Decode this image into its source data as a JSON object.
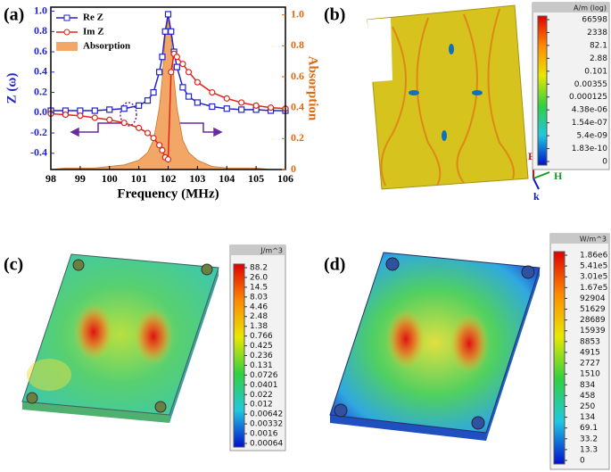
{
  "chart_data": {
    "type": "line",
    "xlabel": "Frequency (MHz)",
    "ylabel": "Z (ω)",
    "y2label": "Absorption",
    "x": [
      98,
      98.5,
      99,
      99.5,
      100,
      100.5,
      101,
      101.3,
      101.5,
      101.7,
      101.8,
      101.9,
      102,
      102.1,
      102.2,
      102.3,
      102.5,
      102.7,
      103,
      103.5,
      104,
      104.5,
      105,
      105.5,
      106
    ],
    "series": [
      {
        "name": "Re Z",
        "type": "line",
        "marker": "square",
        "color": "#2323c8",
        "values": [
          0.02,
          0.02,
          0.02,
          0.02,
          0.03,
          0.04,
          0.07,
          0.12,
          0.2,
          0.4,
          0.55,
          0.8,
          0.97,
          0.8,
          0.6,
          0.45,
          0.25,
          0.16,
          0.1,
          0.06,
          0.04,
          0.03,
          0.03,
          0.02,
          0.02
        ]
      },
      {
        "name": "Im Z",
        "type": "line",
        "marker": "circle",
        "color": "#e0241c",
        "values": [
          -0.01,
          -0.02,
          -0.03,
          -0.05,
          -0.07,
          -0.1,
          -0.15,
          -0.2,
          -0.25,
          -0.32,
          -0.37,
          -0.44,
          -0.46,
          0.4,
          0.58,
          0.55,
          0.48,
          0.4,
          0.3,
          0.2,
          0.14,
          0.1,
          0.07,
          0.05,
          0.04
        ]
      },
      {
        "name": "Absorption",
        "type": "area",
        "axis": "y2",
        "color": "#f2a766",
        "values": [
          0.0,
          0.01,
          0.01,
          0.01,
          0.02,
          0.03,
          0.06,
          0.11,
          0.19,
          0.4,
          0.59,
          0.86,
          0.97,
          0.86,
          0.59,
          0.4,
          0.19,
          0.11,
          0.06,
          0.02,
          0.01,
          0.01,
          0.01,
          0.0,
          0.0
        ]
      }
    ],
    "xlim": [
      98,
      106
    ],
    "xticks": [
      98,
      99,
      100,
      101,
      102,
      103,
      104,
      105,
      106
    ],
    "ylim": [
      -0.56,
      1.04
    ],
    "yticks": [
      -0.4,
      -0.2,
      {
        "value": 0,
        "label": "0.0"
      },
      0.2,
      0.4,
      0.6,
      0.8,
      {
        "value": 1,
        "label": "1.0"
      }
    ],
    "y2lim": [
      0,
      1.05
    ],
    "y2ticks": [
      0,
      0.2,
      0.4,
      0.6,
      0.8,
      {
        "value": 1,
        "label": "1.0"
      }
    ],
    "legend": "upper left"
  },
  "panels": {
    "a": {
      "label": "(a)"
    },
    "b": {
      "label": "(b)",
      "axes": [
        "E",
        "H",
        "k"
      ],
      "colorbar": {
        "unit": "A/m (log)",
        "labels": [
          "66598",
          "2338",
          "82.1",
          "2.88",
          "0.101",
          "0.00355",
          "0.000125",
          "4.38e-06",
          "1.54e-07",
          "5.4e-09",
          "1.83e-10",
          "0"
        ]
      }
    },
    "c": {
      "label": "(c)",
      "colorbar": {
        "unit": "J/m^3",
        "labels": [
          "88.2",
          "26.0",
          "14.5",
          "8.03",
          "4.46",
          "2.48",
          "1.38",
          "0.766",
          "0.425",
          "0.236",
          "0.131",
          "0.0726",
          "0.0401",
          "0.022",
          "0.012",
          "0.00642",
          "0.00332",
          "0.0016",
          "0.00064"
        ]
      }
    },
    "d": {
      "label": "(d)",
      "colorbar": {
        "unit": "W/m^3",
        "labels": [
          "1.86e6",
          "5.41e5",
          "3.01e5",
          "1.67e5",
          "92904",
          "51629",
          "28689",
          "15939",
          "8853",
          "4915",
          "2727",
          "1510",
          "834",
          "458",
          "250",
          "134",
          "69.1",
          "33.2",
          "13.3",
          "0"
        ]
      }
    }
  }
}
